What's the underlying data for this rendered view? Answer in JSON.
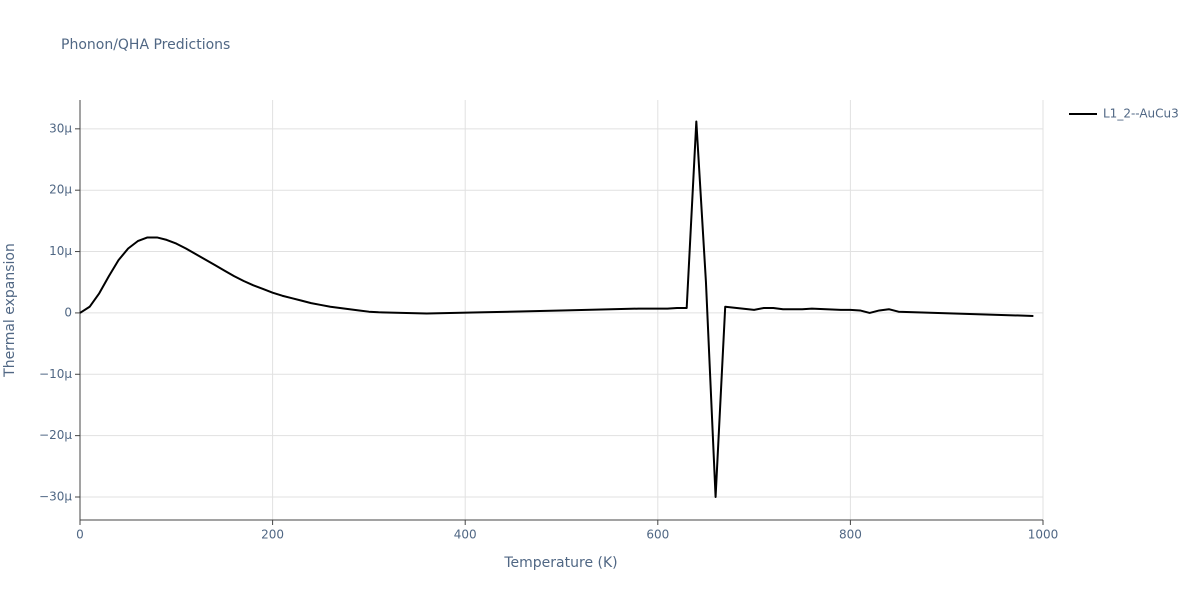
{
  "chart_data": {
    "type": "line",
    "title": "Phonon/QHA Predictions",
    "xlabel": "Temperature (K)",
    "ylabel": "Thermal expansion",
    "x": [
      0,
      10,
      20,
      30,
      40,
      50,
      60,
      70,
      80,
      90,
      100,
      110,
      120,
      130,
      140,
      150,
      160,
      170,
      180,
      190,
      200,
      210,
      220,
      230,
      240,
      250,
      260,
      270,
      280,
      290,
      300,
      310,
      360,
      420,
      500,
      580,
      610,
      620,
      630,
      640,
      650,
      660,
      670,
      700,
      710,
      720,
      730,
      750,
      760,
      790,
      800,
      810,
      820,
      830,
      840,
      850,
      990
    ],
    "series": [
      {
        "name": "L1_2--AuCu3",
        "color": "#000000",
        "values": [
          0,
          1e-06,
          3.2e-06,
          6e-06,
          8.6e-06,
          1.05e-05,
          1.17e-05,
          1.23e-05,
          1.23e-05,
          1.19e-05,
          1.13e-05,
          1.05e-05,
          9.6e-06,
          8.7e-06,
          7.8e-06,
          6.9e-06,
          6e-06,
          5.2e-06,
          4.5e-06,
          3.9e-06,
          3.3e-06,
          2.8e-06,
          2.4e-06,
          2e-06,
          1.6e-06,
          1.3e-06,
          1e-06,
          8e-07,
          6e-07,
          4e-07,
          2e-07,
          1e-07,
          -1e-07,
          1e-07,
          4e-07,
          7e-07,
          7e-07,
          8e-07,
          8e-07,
          3.12e-05,
          5e-06,
          -3e-05,
          1e-06,
          5e-07,
          8e-07,
          8e-07,
          6e-07,
          6e-07,
          7e-07,
          5e-07,
          5e-07,
          4e-07,
          0,
          4e-07,
          6e-07,
          2e-07,
          -5e-07
        ]
      }
    ],
    "xlim": [
      0,
      1000
    ],
    "xticks": [
      0,
      200,
      400,
      600,
      800,
      1000
    ],
    "ylim": [
      -3.375e-05,
      3.47e-05
    ],
    "yticks": [
      {
        "value": -3e-05,
        "label": "−30µ"
      },
      {
        "value": -2e-05,
        "label": "−20µ"
      },
      {
        "value": -1e-05,
        "label": "−10µ"
      },
      0,
      {
        "value": 1e-05,
        "label": "10µ"
      },
      {
        "value": 2e-05,
        "label": "20µ"
      },
      {
        "value": 3e-05,
        "label": "30µ"
      }
    ],
    "grid": true
  }
}
